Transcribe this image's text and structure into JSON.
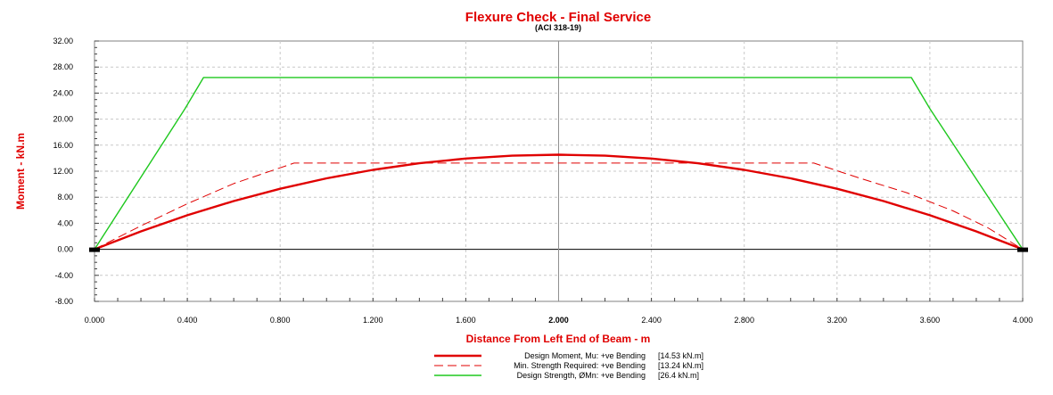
{
  "chart_data": {
    "type": "line",
    "title": "Flexure Check - Final Service",
    "subtitle": "(ACI 318-19)",
    "xlabel": "Distance From Left End of Beam - m",
    "ylabel": "Moment - kN.m",
    "xlim": [
      0,
      4.0
    ],
    "ylim": [
      -8,
      32
    ],
    "x_ticks": [
      "0.000",
      "0.400",
      "0.800",
      "1.200",
      "1.600",
      "2.000",
      "2.400",
      "2.800",
      "3.200",
      "3.600",
      "4.000"
    ],
    "x_tick_values": [
      0,
      0.4,
      0.8,
      1.2,
      1.6,
      2.0,
      2.4,
      2.8,
      3.2,
      3.6,
      4.0
    ],
    "highlighted_x_tick": "2.000",
    "y_ticks": [
      "32.00",
      "28.00",
      "24.00",
      "20.00",
      "16.00",
      "12.00",
      "8.00",
      "4.00",
      "0.00",
      "-4.00",
      "-8.00"
    ],
    "y_tick_values": [
      32,
      28,
      24,
      20,
      16,
      12,
      8,
      4,
      0,
      -4,
      -8
    ],
    "vertical_marker_x": 2.0,
    "grid": true,
    "legend_position": "bottom-center",
    "series": [
      {
        "name": "Design Moment, Mu: +ve Bending",
        "legend_value": "[14.53  kN.m]",
        "style": "solid-thick",
        "color": "#e00000",
        "x": [
          0,
          0.2,
          0.4,
          0.6,
          0.8,
          1.0,
          1.2,
          1.4,
          1.6,
          1.8,
          2.0,
          2.2,
          2.4,
          2.6,
          2.8,
          3.0,
          3.2,
          3.4,
          3.6,
          3.8,
          4.0
        ],
        "y": [
          0,
          2.76,
          5.23,
          7.41,
          9.3,
          10.9,
          12.21,
          13.22,
          13.95,
          14.38,
          14.53,
          14.38,
          13.95,
          13.22,
          12.21,
          10.9,
          9.3,
          7.41,
          5.23,
          2.76,
          0
        ]
      },
      {
        "name": "Min. Strength Required: +ve Bending",
        "legend_value": "[13.24  kN.m]",
        "style": "dashed",
        "color": "#e00000",
        "x": [
          0,
          0.2,
          0.4,
          0.6,
          0.86,
          3.1,
          3.3,
          3.5,
          3.7,
          3.85,
          4.0
        ],
        "y": [
          0,
          3.6,
          7.0,
          10.1,
          13.24,
          13.24,
          10.9,
          8.7,
          5.9,
          3.3,
          0
        ]
      },
      {
        "name": "Design Strength, ØMn: +ve Bending",
        "legend_value": "[26.4  kN.m]",
        "style": "solid",
        "color": "#1ec81e",
        "x": [
          0,
          0.39,
          0.47,
          3.52,
          3.6,
          4.0
        ],
        "y": [
          0,
          21.6,
          26.4,
          26.4,
          21.6,
          0
        ]
      }
    ]
  },
  "colors": {
    "title": "#e00000",
    "axis_label": "#e00000",
    "grid": "#c8c8c8",
    "frame": "#808080",
    "support": "#000000"
  }
}
